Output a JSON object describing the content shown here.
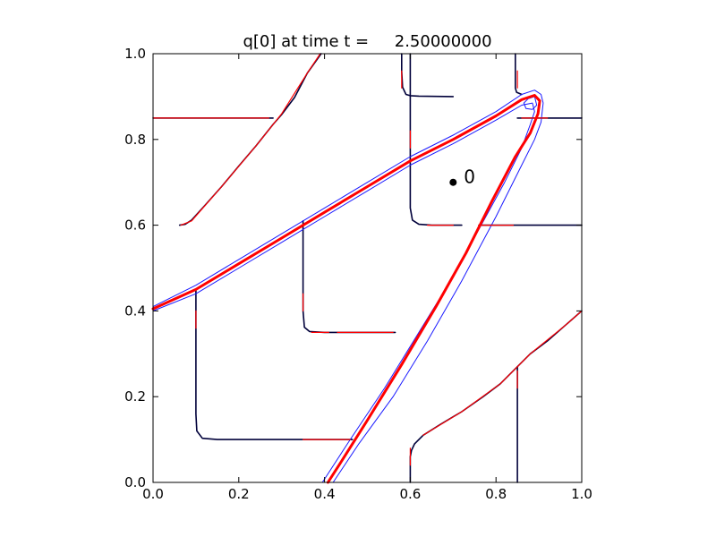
{
  "chart_data": {
    "type": "line",
    "title": "q[0] at time t =     2.50000000",
    "xlabel": "",
    "ylabel": "",
    "xlim": [
      0.0,
      1.0
    ],
    "ylim": [
      0.0,
      1.0
    ],
    "grid": false,
    "x_ticks": [
      "0.0",
      "0.2",
      "0.4",
      "0.6",
      "0.8",
      "1.0"
    ],
    "y_ticks": [
      "0.0",
      "0.2",
      "0.4",
      "0.6",
      "0.8",
      "1.0"
    ],
    "colors": {
      "dark": "#00003a",
      "blue": "#1a1aff",
      "red": "#ff0000",
      "frame": "#000000"
    },
    "point": {
      "label": "0",
      "x": 0.7,
      "y": 0.7
    },
    "series": [
      {
        "color": "dark",
        "width": 1.6,
        "points": [
          [
            0.0,
            0.85
          ],
          [
            0.28,
            0.85
          ]
        ]
      },
      {
        "color": "dark",
        "width": 1.6,
        "points": [
          [
            0.062,
            0.6
          ],
          [
            0.075,
            0.602
          ],
          [
            0.09,
            0.612
          ],
          [
            0.12,
            0.645
          ],
          [
            0.16,
            0.69
          ],
          [
            0.2,
            0.738
          ],
          [
            0.24,
            0.785
          ],
          [
            0.28,
            0.835
          ],
          [
            0.3,
            0.858
          ],
          [
            0.33,
            0.898
          ],
          [
            0.36,
            0.955
          ],
          [
            0.392,
            1.0
          ]
        ]
      },
      {
        "color": "dark",
        "width": 1.6,
        "points": [
          [
            0.58,
            1.0
          ],
          [
            0.58,
            0.96
          ],
          [
            0.582,
            0.922
          ],
          [
            0.59,
            0.905
          ],
          [
            0.6,
            0.902
          ],
          [
            0.62,
            0.901
          ],
          [
            0.7,
            0.9
          ]
        ]
      },
      {
        "color": "dark",
        "width": 1.6,
        "points": [
          [
            0.6,
            1.0
          ],
          [
            0.6,
            0.75
          ],
          [
            0.6,
            0.64
          ],
          [
            0.605,
            0.612
          ],
          [
            0.62,
            0.602
          ],
          [
            0.65,
            0.6
          ],
          [
            0.72,
            0.6
          ]
        ]
      },
      {
        "color": "dark",
        "width": 1.6,
        "points": [
          [
            0.76,
            0.6
          ],
          [
            1.0,
            0.6
          ]
        ]
      },
      {
        "color": "dark",
        "width": 1.6,
        "points": [
          [
            0.845,
            1.0
          ],
          [
            0.845,
            0.92
          ],
          [
            0.848,
            0.91
          ],
          [
            0.86,
            0.905
          ]
        ]
      },
      {
        "color": "dark",
        "width": 1.6,
        "points": [
          [
            0.85,
            0.85
          ],
          [
            1.0,
            0.85
          ]
        ]
      },
      {
        "color": "dark",
        "width": 1.6,
        "points": [
          [
            0.35,
            0.61
          ],
          [
            0.35,
            0.4
          ],
          [
            0.353,
            0.362
          ],
          [
            0.365,
            0.352
          ],
          [
            0.4,
            0.35
          ],
          [
            0.5,
            0.35
          ],
          [
            0.565,
            0.35
          ]
        ]
      },
      {
        "color": "dark",
        "width": 1.6,
        "points": [
          [
            0.1,
            0.45
          ],
          [
            0.1,
            0.16
          ],
          [
            0.102,
            0.12
          ],
          [
            0.115,
            0.103
          ],
          [
            0.15,
            0.1
          ],
          [
            0.3,
            0.1
          ],
          [
            0.465,
            0.1
          ]
        ]
      },
      {
        "color": "dark",
        "width": 1.6,
        "points": [
          [
            0.6,
            0.0
          ],
          [
            0.6,
            0.06
          ],
          [
            0.603,
            0.075
          ],
          [
            0.61,
            0.09
          ],
          [
            0.63,
            0.11
          ],
          [
            0.67,
            0.135
          ],
          [
            0.72,
            0.165
          ],
          [
            0.77,
            0.2
          ],
          [
            0.81,
            0.23
          ],
          [
            0.85,
            0.27
          ],
          [
            0.88,
            0.3
          ],
          [
            0.92,
            0.33
          ],
          [
            0.96,
            0.365
          ],
          [
            1.0,
            0.4
          ]
        ]
      },
      {
        "color": "dark",
        "width": 1.6,
        "points": [
          [
            0.85,
            0.0
          ],
          [
            0.85,
            0.27
          ]
        ]
      },
      {
        "color": "blue",
        "width": 1.0,
        "points": [
          [
            0.0,
            0.41
          ],
          [
            0.1,
            0.46
          ],
          [
            0.2,
            0.52
          ],
          [
            0.3,
            0.58
          ],
          [
            0.4,
            0.64
          ],
          [
            0.5,
            0.7
          ],
          [
            0.6,
            0.76
          ],
          [
            0.7,
            0.81
          ],
          [
            0.8,
            0.865
          ],
          [
            0.86,
            0.905
          ],
          [
            0.89,
            0.915
          ],
          [
            0.905,
            0.905
          ],
          [
            0.91,
            0.885
          ],
          [
            0.905,
            0.84
          ],
          [
            0.89,
            0.8
          ],
          [
            0.86,
            0.74
          ],
          [
            0.8,
            0.62
          ],
          [
            0.72,
            0.47
          ],
          [
            0.64,
            0.33
          ],
          [
            0.56,
            0.2
          ],
          [
            0.48,
            0.09
          ],
          [
            0.42,
            0.0
          ]
        ]
      },
      {
        "color": "blue",
        "width": 1.0,
        "points": [
          [
            0.0,
            0.4
          ],
          [
            0.1,
            0.44
          ],
          [
            0.2,
            0.5
          ],
          [
            0.3,
            0.56
          ],
          [
            0.4,
            0.62
          ],
          [
            0.5,
            0.68
          ],
          [
            0.6,
            0.74
          ],
          [
            0.7,
            0.79
          ],
          [
            0.8,
            0.845
          ],
          [
            0.86,
            0.88
          ],
          [
            0.885,
            0.885
          ],
          [
            0.89,
            0.865
          ],
          [
            0.88,
            0.835
          ],
          [
            0.86,
            0.78
          ],
          [
            0.82,
            0.7
          ],
          [
            0.76,
            0.59
          ],
          [
            0.7,
            0.48
          ],
          [
            0.62,
            0.35
          ],
          [
            0.54,
            0.22
          ],
          [
            0.46,
            0.1
          ],
          [
            0.395,
            0.0
          ]
        ]
      },
      {
        "color": "blue",
        "width": 1.0,
        "points": [
          [
            0.865,
            0.885
          ],
          [
            0.875,
            0.895
          ],
          [
            0.89,
            0.9
          ],
          [
            0.895,
            0.88
          ],
          [
            0.885,
            0.87
          ],
          [
            0.87,
            0.872
          ],
          [
            0.865,
            0.885
          ]
        ]
      },
      {
        "color": "red",
        "width": 3.0,
        "points": [
          [
            0.0,
            0.405
          ],
          [
            0.1,
            0.45
          ],
          [
            0.2,
            0.51
          ],
          [
            0.3,
            0.57
          ],
          [
            0.4,
            0.63
          ],
          [
            0.5,
            0.69
          ],
          [
            0.6,
            0.75
          ],
          [
            0.7,
            0.8
          ],
          [
            0.8,
            0.855
          ],
          [
            0.86,
            0.893
          ],
          [
            0.89,
            0.903
          ],
          [
            0.902,
            0.89
          ],
          [
            0.898,
            0.86
          ],
          [
            0.88,
            0.815
          ],
          [
            0.845,
            0.76
          ],
          [
            0.79,
            0.655
          ],
          [
            0.73,
            0.535
          ],
          [
            0.66,
            0.41
          ],
          [
            0.58,
            0.275
          ],
          [
            0.5,
            0.145
          ],
          [
            0.44,
            0.05
          ],
          [
            0.408,
            0.0
          ]
        ]
      },
      {
        "color": "red",
        "width": 1.2,
        "points": [
          [
            0.0,
            0.85
          ],
          [
            0.27,
            0.85
          ]
        ]
      },
      {
        "color": "red",
        "width": 1.2,
        "points": [
          [
            0.065,
            0.6
          ],
          [
            0.09,
            0.61
          ],
          [
            0.16,
            0.69
          ],
          [
            0.24,
            0.785
          ],
          [
            0.3,
            0.86
          ],
          [
            0.36,
            0.955
          ],
          [
            0.39,
            1.0
          ]
        ]
      },
      {
        "color": "red",
        "width": 1.2,
        "points": [
          [
            0.37,
            0.35
          ],
          [
            0.41,
            0.35
          ]
        ]
      },
      {
        "color": "red",
        "width": 1.2,
        "points": [
          [
            0.43,
            0.35
          ],
          [
            0.56,
            0.35
          ]
        ]
      },
      {
        "color": "red",
        "width": 1.2,
        "points": [
          [
            0.35,
            0.1
          ],
          [
            0.46,
            0.1
          ]
        ]
      },
      {
        "color": "red",
        "width": 1.2,
        "points": [
          [
            0.1,
            0.36
          ],
          [
            0.1,
            0.4
          ]
        ]
      },
      {
        "color": "red",
        "width": 1.2,
        "points": [
          [
            0.35,
            0.4
          ],
          [
            0.35,
            0.44
          ]
        ]
      },
      {
        "color": "red",
        "width": 1.2,
        "points": [
          [
            0.6,
            0.78
          ],
          [
            0.6,
            0.82
          ]
        ]
      },
      {
        "color": "red",
        "width": 1.2,
        "points": [
          [
            0.58,
            0.92
          ],
          [
            0.58,
            0.96
          ]
        ]
      },
      {
        "color": "red",
        "width": 1.2,
        "points": [
          [
            0.76,
            0.6
          ],
          [
            0.84,
            0.6
          ]
        ]
      },
      {
        "color": "red",
        "width": 1.2,
        "points": [
          [
            0.64,
            0.6
          ],
          [
            0.7,
            0.6
          ]
        ]
      },
      {
        "color": "red",
        "width": 1.2,
        "points": [
          [
            0.86,
            0.85
          ],
          [
            0.92,
            0.85
          ]
        ]
      },
      {
        "color": "red",
        "width": 1.2,
        "points": [
          [
            0.85,
            0.92
          ],
          [
            0.85,
            0.96
          ]
        ]
      },
      {
        "color": "red",
        "width": 1.2,
        "points": [
          [
            0.6,
            0.04
          ],
          [
            0.6,
            0.08
          ]
        ]
      },
      {
        "color": "red",
        "width": 1.2,
        "points": [
          [
            0.85,
            0.22
          ],
          [
            0.85,
            0.26
          ]
        ]
      },
      {
        "color": "red",
        "width": 1.2,
        "points": [
          [
            0.63,
            0.11
          ],
          [
            0.72,
            0.165
          ],
          [
            0.81,
            0.23
          ],
          [
            0.88,
            0.3
          ],
          [
            0.96,
            0.365
          ],
          [
            1.0,
            0.4
          ]
        ]
      }
    ]
  }
}
